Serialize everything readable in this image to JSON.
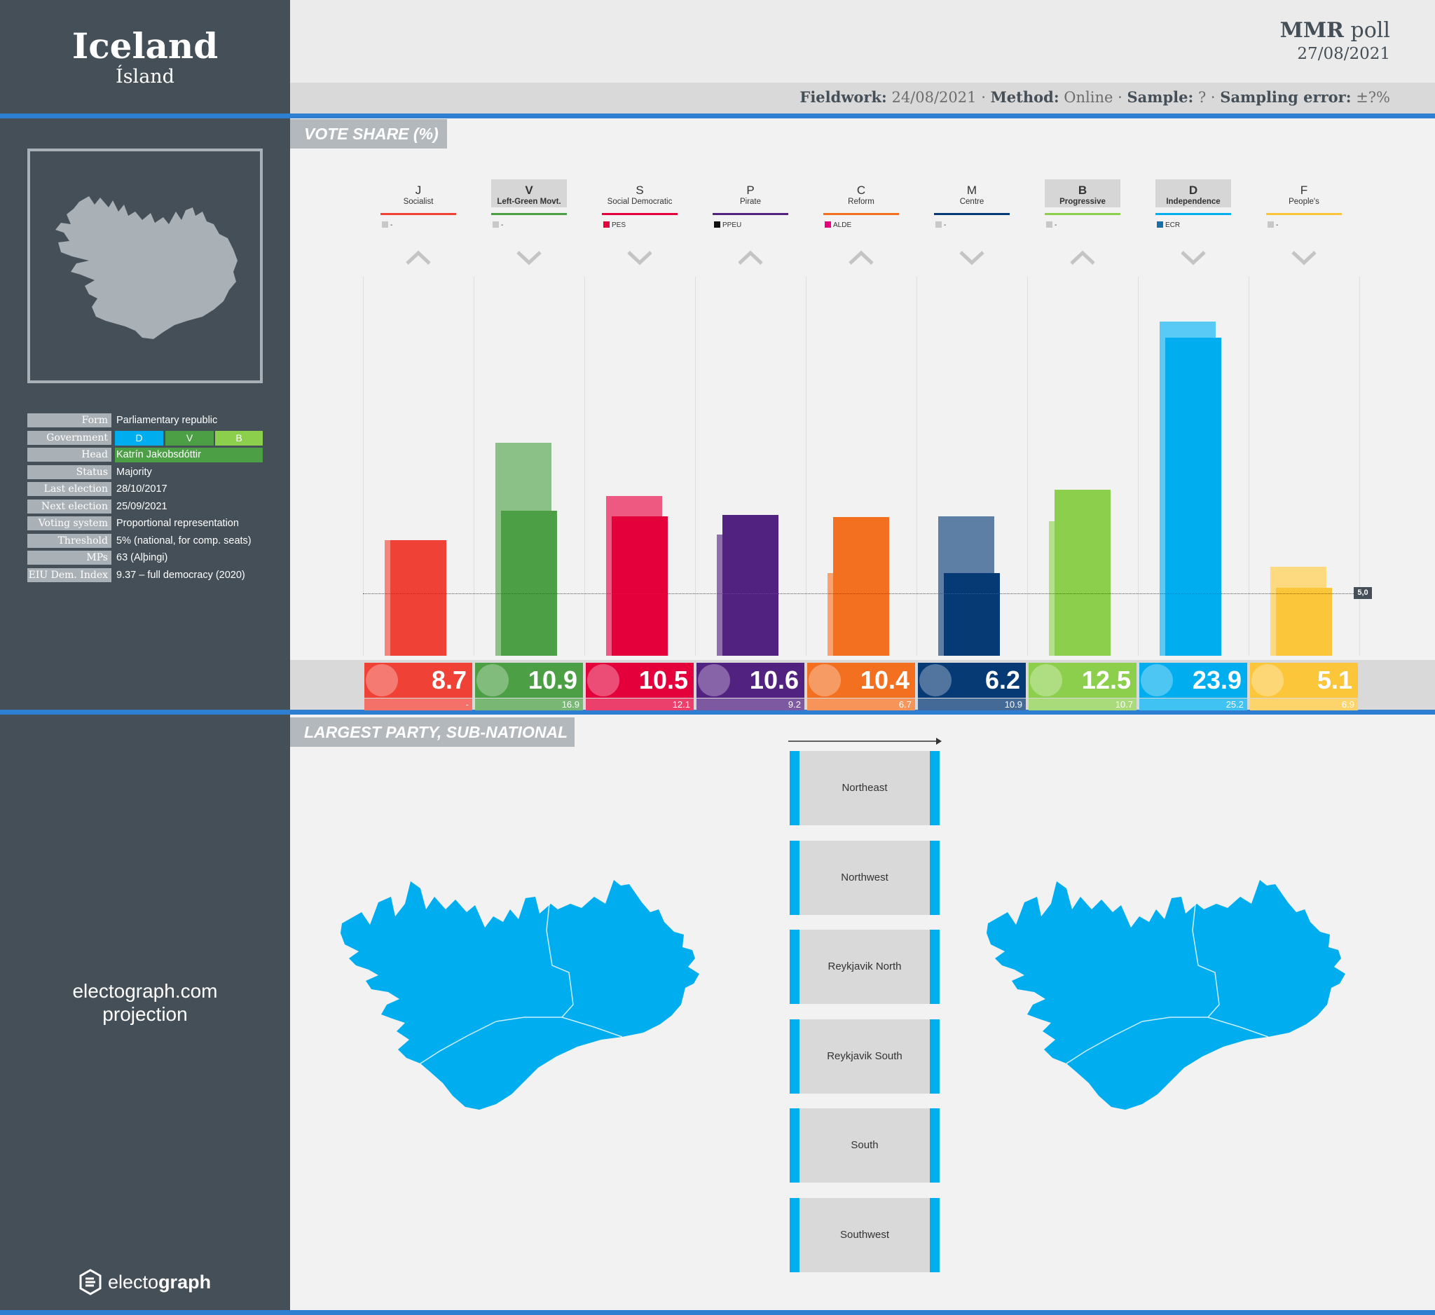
{
  "sidebar": {
    "country": "Iceland",
    "native_name": "Ísland",
    "facts": [
      {
        "key": "Form",
        "value": "Parliamentary republic"
      },
      {
        "key": "Government",
        "value": ""
      },
      {
        "key": "Head",
        "value": "Katrín Jakobsdóttir"
      },
      {
        "key": "Status",
        "value": "Majority"
      },
      {
        "key": "Last election",
        "value": "28/10/2017"
      },
      {
        "key": "Next election",
        "value": "25/09/2021"
      },
      {
        "key": "Voting system",
        "value": "Proportional representation"
      },
      {
        "key": "Threshold",
        "value": "5% (national, for comp. seats)"
      },
      {
        "key": "MPs",
        "value": "63 (Alþingi)"
      },
      {
        "key": "EIU Dem. Index",
        "value": "9.37 – full democracy (2020)"
      }
    ],
    "government_parties": [
      {
        "label": "D",
        "color": "#00adef"
      },
      {
        "label": "V",
        "color": "#4c9f45"
      },
      {
        "label": "B",
        "color": "#8ccf4d"
      }
    ],
    "head_color": "#4c9f45",
    "projection_line1": "electograph.com",
    "projection_line2": "projection",
    "logo_text_light": "electo",
    "logo_text_bold": "graph"
  },
  "header": {
    "pollster": "MMR",
    "poll_word": "poll",
    "date": "27/08/2021",
    "fieldwork_label": "Fieldwork:",
    "fieldwork_value": "24/08/2021",
    "method_label": "Method:",
    "method_value": "Online",
    "sample_label": "Sample:",
    "sample_value": "?",
    "error_label": "Sampling error:",
    "error_value": "±?%",
    "separator": "·"
  },
  "sections": {
    "vote_share": "VOTE SHARE (%)",
    "largest_party": "LARGEST PARTY, SUB-NATIONAL"
  },
  "chart_data": {
    "type": "bar",
    "title": "VOTE SHARE (%)",
    "categories": [
      "J",
      "V",
      "S",
      "P",
      "C",
      "M",
      "B",
      "D",
      "F"
    ],
    "series": [
      {
        "name": "",
        "values": [
          8.7,
          10.9,
          10.5,
          10.6,
          10.4,
          6.2,
          12.5,
          23.9,
          5.1
        ]
      }
    ],
    "previous_election": [
      null,
      16.9,
      12.1,
      9.2,
      6.7,
      10.9,
      10.7,
      25.2,
      6.9
    ],
    "previous_poll": [
      8.7,
      16.0,
      12.0,
      9.1,
      6.2,
      10.5,
      10.1,
      25.1,
      6.7
    ],
    "ylim": [
      0,
      27
    ],
    "threshold": 5.0,
    "threshold_label": "5,0",
    "parties": [
      {
        "abbr": "J",
        "name": "Socialist",
        "color": "#ef4136",
        "eu": "-",
        "eu_color": "#c8c8c8",
        "trend": "up",
        "gov": false,
        "prev_label": "-"
      },
      {
        "abbr": "V",
        "name": "Left-Green Movt.",
        "color": "#4c9f45",
        "eu": "-",
        "eu_color": "#c8c8c8",
        "trend": "down",
        "gov": true,
        "prev_label": "16.9"
      },
      {
        "abbr": "S",
        "name": "Social Democratic",
        "color": "#e4003b",
        "eu": "PES",
        "eu_color": "#e4003b",
        "trend": "down",
        "gov": false,
        "prev_label": "12.1"
      },
      {
        "abbr": "P",
        "name": "Pirate",
        "color": "#522281",
        "eu": "PPEU",
        "eu_color": "#111111",
        "trend": "up",
        "gov": false,
        "prev_label": "9.2"
      },
      {
        "abbr": "C",
        "name": "Reform",
        "color": "#f47021",
        "eu": "ALDE",
        "eu_color": "#e6007e",
        "trend": "up",
        "gov": false,
        "prev_label": "6.7"
      },
      {
        "abbr": "M",
        "name": "Centre",
        "color": "#063a75",
        "eu": "-",
        "eu_color": "#c8c8c8",
        "trend": "down",
        "gov": false,
        "prev_label": "10.9"
      },
      {
        "abbr": "B",
        "name": "Progressive",
        "color": "#8ccf4d",
        "eu": "-",
        "eu_color": "#c8c8c8",
        "trend": "up",
        "gov": true,
        "prev_label": "10.7"
      },
      {
        "abbr": "D",
        "name": "Independence",
        "color": "#00adef",
        "eu": "ECR",
        "eu_color": "#1b6fa8",
        "trend": "down",
        "gov": true,
        "prev_label": "25.2"
      },
      {
        "abbr": "F",
        "name": "People's",
        "color": "#fcc63b",
        "eu": "-",
        "eu_color": "#c8c8c8",
        "trend": "down",
        "gov": false,
        "prev_label": "6.9"
      }
    ]
  },
  "regions": [
    "Northeast",
    "Northwest",
    "Reykjavik North",
    "Reykjavik South",
    "South",
    "Southwest"
  ],
  "colors": {
    "sidebar": "#454f58",
    "accent_line": "#2e7fd1",
    "region_fill": "#00adef"
  }
}
